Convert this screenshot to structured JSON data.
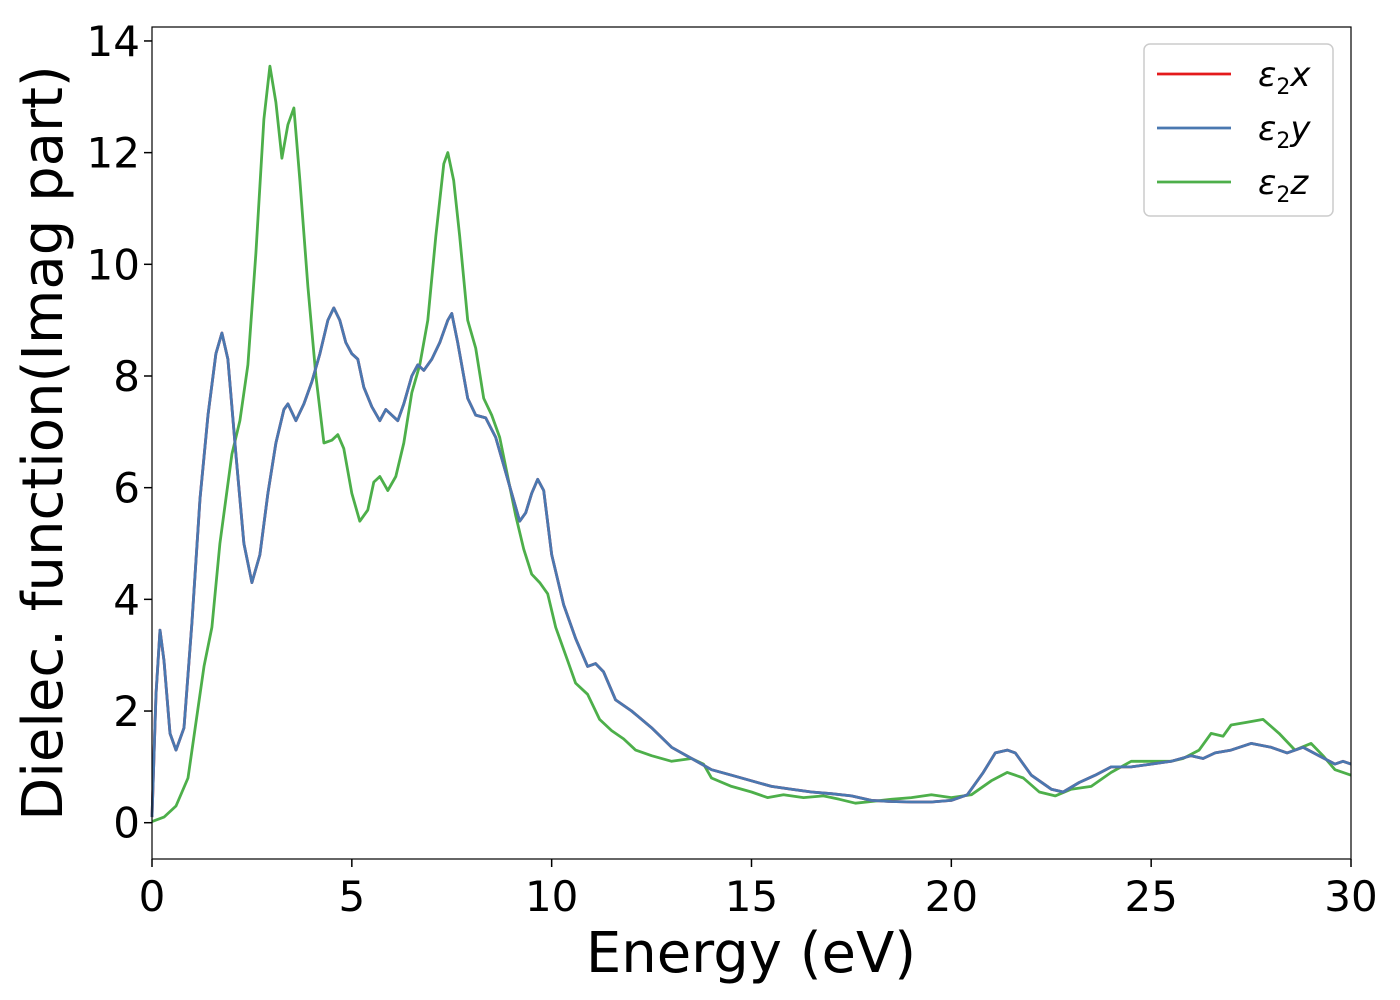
{
  "chart_data": {
    "type": "line",
    "xlabel": "Energy (eV)",
    "ylabel": "Dielec. function(Imag part)",
    "xlim": [
      0,
      30
    ],
    "ylim": [
      -0.65,
      14.25
    ],
    "x_ticks": [
      0,
      5,
      10,
      15,
      20,
      25,
      30
    ],
    "y_ticks": [
      0,
      2,
      4,
      6,
      8,
      10,
      12,
      14
    ],
    "grid": false,
    "legend_position": "top-right",
    "series": [
      {
        "name": "ε₂x",
        "symbol": "ε",
        "subscript": "2",
        "axis": "x",
        "color": "#e41a1c",
        "points": [
          [
            0,
            0.1
          ],
          [
            0.1,
            2.3
          ],
          [
            0.2,
            3.45
          ],
          [
            0.3,
            2.9
          ],
          [
            0.45,
            1.6
          ],
          [
            0.6,
            1.3
          ],
          [
            0.8,
            1.7
          ],
          [
            1.0,
            3.6
          ],
          [
            1.2,
            5.8
          ],
          [
            1.4,
            7.3
          ],
          [
            1.6,
            8.4
          ],
          [
            1.75,
            8.77
          ],
          [
            1.9,
            8.3
          ],
          [
            2.1,
            6.6
          ],
          [
            2.3,
            5.0
          ],
          [
            2.5,
            4.3
          ],
          [
            2.7,
            4.8
          ],
          [
            2.9,
            5.9
          ],
          [
            3.1,
            6.8
          ],
          [
            3.3,
            7.4
          ],
          [
            3.4,
            7.5
          ],
          [
            3.6,
            7.2
          ],
          [
            3.8,
            7.5
          ],
          [
            4.0,
            7.9
          ],
          [
            4.2,
            8.4
          ],
          [
            4.4,
            9.0
          ],
          [
            4.55,
            9.22
          ],
          [
            4.7,
            9.0
          ],
          [
            4.85,
            8.6
          ],
          [
            5.0,
            8.4
          ],
          [
            5.15,
            8.3
          ],
          [
            5.3,
            7.8
          ],
          [
            5.5,
            7.45
          ],
          [
            5.7,
            7.2
          ],
          [
            5.85,
            7.4
          ],
          [
            6.0,
            7.3
          ],
          [
            6.15,
            7.2
          ],
          [
            6.3,
            7.5
          ],
          [
            6.5,
            8.0
          ],
          [
            6.65,
            8.2
          ],
          [
            6.8,
            8.1
          ],
          [
            7.0,
            8.3
          ],
          [
            7.2,
            8.6
          ],
          [
            7.4,
            9.0
          ],
          [
            7.5,
            9.12
          ],
          [
            7.65,
            8.6
          ],
          [
            7.9,
            7.6
          ],
          [
            8.1,
            7.3
          ],
          [
            8.35,
            7.25
          ],
          [
            8.6,
            6.9
          ],
          [
            8.8,
            6.4
          ],
          [
            9.0,
            5.9
          ],
          [
            9.2,
            5.4
          ],
          [
            9.35,
            5.55
          ],
          [
            9.5,
            5.9
          ],
          [
            9.65,
            6.15
          ],
          [
            9.8,
            5.95
          ],
          [
            10.0,
            4.8
          ],
          [
            10.3,
            3.9
          ],
          [
            10.6,
            3.3
          ],
          [
            10.9,
            2.8
          ],
          [
            11.1,
            2.85
          ],
          [
            11.3,
            2.7
          ],
          [
            11.6,
            2.2
          ],
          [
            12.0,
            2.0
          ],
          [
            12.5,
            1.7
          ],
          [
            13.0,
            1.35
          ],
          [
            13.5,
            1.15
          ],
          [
            14.0,
            0.95
          ],
          [
            14.5,
            0.85
          ],
          [
            15.0,
            0.75
          ],
          [
            15.5,
            0.65
          ],
          [
            16.0,
            0.6
          ],
          [
            16.5,
            0.55
          ],
          [
            17.0,
            0.52
          ],
          [
            17.5,
            0.48
          ],
          [
            18.0,
            0.4
          ],
          [
            18.5,
            0.38
          ],
          [
            19.0,
            0.37
          ],
          [
            19.5,
            0.37
          ],
          [
            20.0,
            0.4
          ],
          [
            20.4,
            0.5
          ],
          [
            20.8,
            0.9
          ],
          [
            21.1,
            1.25
          ],
          [
            21.4,
            1.3
          ],
          [
            21.6,
            1.25
          ],
          [
            22.0,
            0.85
          ],
          [
            22.5,
            0.6
          ],
          [
            22.8,
            0.55
          ],
          [
            23.2,
            0.72
          ],
          [
            23.6,
            0.85
          ],
          [
            24.0,
            1.0
          ],
          [
            24.5,
            1.0
          ],
          [
            25.0,
            1.05
          ],
          [
            25.5,
            1.1
          ],
          [
            26.0,
            1.2
          ],
          [
            26.3,
            1.15
          ],
          [
            26.6,
            1.25
          ],
          [
            27.0,
            1.3
          ],
          [
            27.5,
            1.42
          ],
          [
            28.0,
            1.35
          ],
          [
            28.4,
            1.25
          ],
          [
            28.8,
            1.35
          ],
          [
            29.2,
            1.2
          ],
          [
            29.6,
            1.05
          ],
          [
            29.8,
            1.1
          ],
          [
            30.0,
            1.05
          ]
        ]
      },
      {
        "name": "ε₂y",
        "symbol": "ε",
        "subscript": "2",
        "axis": "y",
        "color": "#4a78b0",
        "points": [
          [
            0,
            0.1
          ],
          [
            0.1,
            2.3
          ],
          [
            0.2,
            3.45
          ],
          [
            0.3,
            2.9
          ],
          [
            0.45,
            1.6
          ],
          [
            0.6,
            1.3
          ],
          [
            0.8,
            1.7
          ],
          [
            1.0,
            3.6
          ],
          [
            1.2,
            5.8
          ],
          [
            1.4,
            7.3
          ],
          [
            1.6,
            8.4
          ],
          [
            1.75,
            8.77
          ],
          [
            1.9,
            8.3
          ],
          [
            2.1,
            6.6
          ],
          [
            2.3,
            5.0
          ],
          [
            2.5,
            4.3
          ],
          [
            2.7,
            4.8
          ],
          [
            2.9,
            5.9
          ],
          [
            3.1,
            6.8
          ],
          [
            3.3,
            7.4
          ],
          [
            3.4,
            7.5
          ],
          [
            3.6,
            7.2
          ],
          [
            3.8,
            7.5
          ],
          [
            4.0,
            7.9
          ],
          [
            4.2,
            8.4
          ],
          [
            4.4,
            9.0
          ],
          [
            4.55,
            9.22
          ],
          [
            4.7,
            9.0
          ],
          [
            4.85,
            8.6
          ],
          [
            5.0,
            8.4
          ],
          [
            5.15,
            8.3
          ],
          [
            5.3,
            7.8
          ],
          [
            5.5,
            7.45
          ],
          [
            5.7,
            7.2
          ],
          [
            5.85,
            7.4
          ],
          [
            6.0,
            7.3
          ],
          [
            6.15,
            7.2
          ],
          [
            6.3,
            7.5
          ],
          [
            6.5,
            8.0
          ],
          [
            6.65,
            8.2
          ],
          [
            6.8,
            8.1
          ],
          [
            7.0,
            8.3
          ],
          [
            7.2,
            8.6
          ],
          [
            7.4,
            9.0
          ],
          [
            7.5,
            9.12
          ],
          [
            7.65,
            8.6
          ],
          [
            7.9,
            7.6
          ],
          [
            8.1,
            7.3
          ],
          [
            8.35,
            7.25
          ],
          [
            8.6,
            6.9
          ],
          [
            8.8,
            6.4
          ],
          [
            9.0,
            5.9
          ],
          [
            9.2,
            5.4
          ],
          [
            9.35,
            5.55
          ],
          [
            9.5,
            5.9
          ],
          [
            9.65,
            6.15
          ],
          [
            9.8,
            5.95
          ],
          [
            10.0,
            4.8
          ],
          [
            10.3,
            3.9
          ],
          [
            10.6,
            3.3
          ],
          [
            10.9,
            2.8
          ],
          [
            11.1,
            2.85
          ],
          [
            11.3,
            2.7
          ],
          [
            11.6,
            2.2
          ],
          [
            12.0,
            2.0
          ],
          [
            12.5,
            1.7
          ],
          [
            13.0,
            1.35
          ],
          [
            13.5,
            1.15
          ],
          [
            14.0,
            0.95
          ],
          [
            14.5,
            0.85
          ],
          [
            15.0,
            0.75
          ],
          [
            15.5,
            0.65
          ],
          [
            16.0,
            0.6
          ],
          [
            16.5,
            0.55
          ],
          [
            17.0,
            0.52
          ],
          [
            17.5,
            0.48
          ],
          [
            18.0,
            0.4
          ],
          [
            18.5,
            0.38
          ],
          [
            19.0,
            0.37
          ],
          [
            19.5,
            0.37
          ],
          [
            20.0,
            0.4
          ],
          [
            20.4,
            0.5
          ],
          [
            20.8,
            0.9
          ],
          [
            21.1,
            1.25
          ],
          [
            21.4,
            1.3
          ],
          [
            21.6,
            1.25
          ],
          [
            22.0,
            0.85
          ],
          [
            22.5,
            0.6
          ],
          [
            22.8,
            0.55
          ],
          [
            23.2,
            0.72
          ],
          [
            23.6,
            0.85
          ],
          [
            24.0,
            1.0
          ],
          [
            24.5,
            1.0
          ],
          [
            25.0,
            1.05
          ],
          [
            25.5,
            1.1
          ],
          [
            26.0,
            1.2
          ],
          [
            26.3,
            1.15
          ],
          [
            26.6,
            1.25
          ],
          [
            27.0,
            1.3
          ],
          [
            27.5,
            1.42
          ],
          [
            28.0,
            1.35
          ],
          [
            28.4,
            1.25
          ],
          [
            28.8,
            1.35
          ],
          [
            29.2,
            1.2
          ],
          [
            29.6,
            1.05
          ],
          [
            29.8,
            1.1
          ],
          [
            30.0,
            1.05
          ]
        ]
      },
      {
        "name": "ε₂z",
        "symbol": "ε",
        "subscript": "2",
        "axis": "z",
        "color": "#4daf4a",
        "points": [
          [
            0,
            0.02
          ],
          [
            0.3,
            0.1
          ],
          [
            0.6,
            0.3
          ],
          [
            0.9,
            0.8
          ],
          [
            1.1,
            1.8
          ],
          [
            1.3,
            2.8
          ],
          [
            1.5,
            3.5
          ],
          [
            1.7,
            5.0
          ],
          [
            1.85,
            5.8
          ],
          [
            2.0,
            6.6
          ],
          [
            2.2,
            7.2
          ],
          [
            2.4,
            8.2
          ],
          [
            2.6,
            10.2
          ],
          [
            2.8,
            12.6
          ],
          [
            2.95,
            13.55
          ],
          [
            3.1,
            12.9
          ],
          [
            3.25,
            11.9
          ],
          [
            3.4,
            12.5
          ],
          [
            3.55,
            12.8
          ],
          [
            3.7,
            11.5
          ],
          [
            3.9,
            9.6
          ],
          [
            4.1,
            8.0
          ],
          [
            4.3,
            6.8
          ],
          [
            4.5,
            6.85
          ],
          [
            4.65,
            6.95
          ],
          [
            4.8,
            6.7
          ],
          [
            5.0,
            5.9
          ],
          [
            5.2,
            5.4
          ],
          [
            5.4,
            5.6
          ],
          [
            5.55,
            6.1
          ],
          [
            5.7,
            6.2
          ],
          [
            5.9,
            5.95
          ],
          [
            6.1,
            6.2
          ],
          [
            6.3,
            6.8
          ],
          [
            6.5,
            7.7
          ],
          [
            6.7,
            8.2
          ],
          [
            6.9,
            9.0
          ],
          [
            7.1,
            10.5
          ],
          [
            7.3,
            11.8
          ],
          [
            7.4,
            12.0
          ],
          [
            7.55,
            11.5
          ],
          [
            7.7,
            10.5
          ],
          [
            7.9,
            9.0
          ],
          [
            8.1,
            8.5
          ],
          [
            8.3,
            7.6
          ],
          [
            8.5,
            7.3
          ],
          [
            8.7,
            6.9
          ],
          [
            8.9,
            6.2
          ],
          [
            9.1,
            5.5
          ],
          [
            9.3,
            4.9
          ],
          [
            9.5,
            4.45
          ],
          [
            9.7,
            4.3
          ],
          [
            9.9,
            4.1
          ],
          [
            10.1,
            3.5
          ],
          [
            10.4,
            2.9
          ],
          [
            10.6,
            2.5
          ],
          [
            10.9,
            2.3
          ],
          [
            11.2,
            1.85
          ],
          [
            11.5,
            1.65
          ],
          [
            11.8,
            1.5
          ],
          [
            12.1,
            1.3
          ],
          [
            12.5,
            1.2
          ],
          [
            13.0,
            1.1
          ],
          [
            13.5,
            1.15
          ],
          [
            13.8,
            1.05
          ],
          [
            14.0,
            0.8
          ],
          [
            14.5,
            0.65
          ],
          [
            15.0,
            0.55
          ],
          [
            15.4,
            0.45
          ],
          [
            15.8,
            0.5
          ],
          [
            16.3,
            0.45
          ],
          [
            16.8,
            0.48
          ],
          [
            17.2,
            0.42
          ],
          [
            17.6,
            0.35
          ],
          [
            18.0,
            0.38
          ],
          [
            18.5,
            0.42
          ],
          [
            19.0,
            0.45
          ],
          [
            19.5,
            0.5
          ],
          [
            20.0,
            0.45
          ],
          [
            20.5,
            0.5
          ],
          [
            21.0,
            0.75
          ],
          [
            21.4,
            0.9
          ],
          [
            21.8,
            0.8
          ],
          [
            22.2,
            0.55
          ],
          [
            22.6,
            0.48
          ],
          [
            23.0,
            0.6
          ],
          [
            23.5,
            0.65
          ],
          [
            24.0,
            0.9
          ],
          [
            24.5,
            1.1
          ],
          [
            25.0,
            1.1
          ],
          [
            25.5,
            1.1
          ],
          [
            25.8,
            1.15
          ],
          [
            26.2,
            1.3
          ],
          [
            26.5,
            1.6
          ],
          [
            26.8,
            1.55
          ],
          [
            27.0,
            1.75
          ],
          [
            27.4,
            1.8
          ],
          [
            27.8,
            1.85
          ],
          [
            28.2,
            1.6
          ],
          [
            28.6,
            1.3
          ],
          [
            29.0,
            1.42
          ],
          [
            29.3,
            1.2
          ],
          [
            29.6,
            0.95
          ],
          [
            30.0,
            0.85
          ]
        ]
      }
    ]
  }
}
